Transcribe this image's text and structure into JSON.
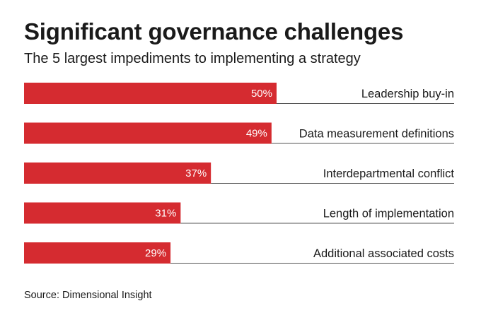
{
  "header": {
    "title": "Significant governance challenges",
    "subtitle": "The 5 largest impediments to implementing a strategy"
  },
  "chart_data": {
    "type": "bar",
    "orientation": "horizontal",
    "categories": [
      "Leadership buy-in",
      "Data measurement definitions",
      "Interdepartmental conflict",
      "Length of implementation",
      "Additional associated costs"
    ],
    "values": [
      50,
      49,
      37,
      31,
      29
    ],
    "value_labels": [
      "50%",
      "49%",
      "37%",
      "31%",
      "29%"
    ],
    "unit": "%",
    "xlim": [
      0,
      100
    ],
    "bar_color": "#d52b30",
    "label_color": "#ffffff",
    "rule_color": "#555555"
  },
  "footer": {
    "source": "Source: Dimensional Insight"
  }
}
